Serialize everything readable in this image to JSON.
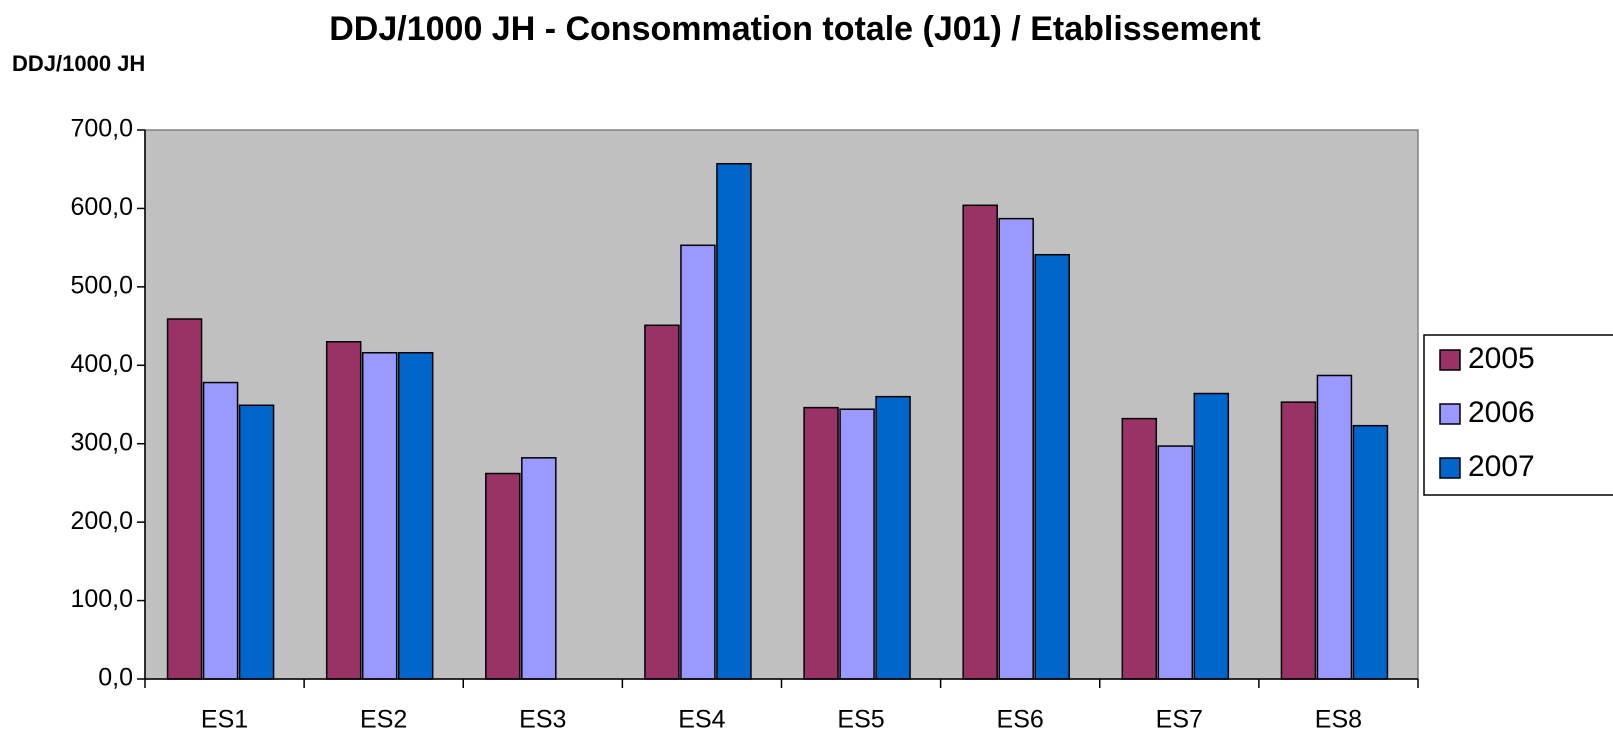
{
  "chart_data": {
    "type": "bar",
    "title": "DDJ/1000 JH - Consommation totale (J01) / Etablissement",
    "y_label": "DDJ/1000 JH",
    "categories": [
      "ES1",
      "ES2",
      "ES3",
      "ES4",
      "ES5",
      "ES6",
      "ES7",
      "ES8"
    ],
    "series": [
      {
        "name": "2005",
        "color": "#993366",
        "values": [
          459,
          430,
          262,
          451,
          346,
          604,
          332,
          353
        ]
      },
      {
        "name": "2006",
        "color": "#9999ff",
        "values": [
          378,
          416,
          282,
          553,
          344,
          587,
          297,
          387
        ]
      },
      {
        "name": "2007",
        "color": "#0066cc",
        "values": [
          349,
          416,
          null,
          657,
          360,
          541,
          364,
          323
        ]
      }
    ],
    "ylim": [
      0,
      700
    ],
    "yticks": [
      {
        "value": 0,
        "label": "0,0"
      },
      {
        "value": 100,
        "label": "100,0"
      },
      {
        "value": 200,
        "label": "200,0"
      },
      {
        "value": 300,
        "label": "300,0"
      },
      {
        "value": 400,
        "label": "400,0"
      },
      {
        "value": 500,
        "label": "500,0"
      },
      {
        "value": 600,
        "label": "600,0"
      },
      {
        "value": 700,
        "label": "700,0"
      }
    ],
    "legend": "right",
    "plot_background": "#c0c0c0"
  }
}
